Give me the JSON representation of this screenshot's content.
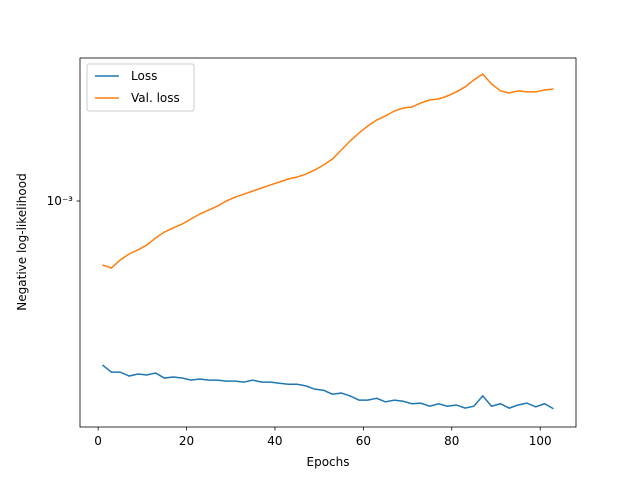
{
  "chart_data": {
    "type": "line",
    "xlabel": "Epochs",
    "ylabel": "Negative log-likelihood",
    "x": [
      1,
      3,
      5,
      7,
      9,
      11,
      13,
      15,
      17,
      19,
      21,
      23,
      25,
      27,
      29,
      31,
      33,
      35,
      37,
      39,
      41,
      43,
      45,
      47,
      49,
      51,
      53,
      55,
      57,
      59,
      61,
      63,
      65,
      67,
      69,
      71,
      73,
      75,
      77,
      79,
      81,
      83,
      85,
      87,
      89,
      91,
      93,
      95,
      97,
      99,
      101,
      103
    ],
    "series": [
      {
        "name": "Loss",
        "color": "#1f77b4",
        "values": [
          0.000284,
          0.000269,
          0.000269,
          0.000261,
          0.000265,
          0.000263,
          0.000267,
          0.000257,
          0.000259,
          0.000257,
          0.000253,
          0.000255,
          0.000253,
          0.000253,
          0.000251,
          0.000251,
          0.000249,
          0.000253,
          0.000249,
          0.000249,
          0.000247,
          0.000245,
          0.000245,
          0.000242,
          0.000236,
          0.000234,
          0.000227,
          0.000229,
          0.000224,
          0.000217,
          0.000217,
          0.00022,
          0.000214,
          0.000217,
          0.000215,
          0.000211,
          0.000212,
          0.000207,
          0.000211,
          0.000207,
          0.000209,
          0.000204,
          0.000207,
          0.000224,
          0.000207,
          0.000211,
          0.000204,
          0.000209,
          0.000212,
          0.000206,
          0.000211,
          0.000203
        ]
      },
      {
        "name": "Val. loss",
        "color": "#ff7f0e",
        "values": [
          0.000612,
          0.000598,
          0.000636,
          0.000666,
          0.000687,
          0.000713,
          0.000753,
          0.000788,
          0.000813,
          0.000838,
          0.000871,
          0.000905,
          0.000933,
          0.000962,
          0.001,
          0.001031,
          0.001055,
          0.00108,
          0.001105,
          0.001131,
          0.001157,
          0.001184,
          0.001202,
          0.00123,
          0.001268,
          0.001318,
          0.00138,
          0.001479,
          0.001585,
          0.001685,
          0.001778,
          0.001862,
          0.001921,
          0.001995,
          0.002042,
          0.002058,
          0.002122,
          0.002173,
          0.002188,
          0.002239,
          0.00231,
          0.0024,
          0.002531,
          0.00265,
          0.002455,
          0.002329,
          0.002291,
          0.002329,
          0.00231,
          0.00231,
          0.002345,
          0.002363
        ]
      }
    ],
    "xlim": [
      -4.1,
      108.1
    ],
    "xticks": [
      0,
      20,
      40,
      60,
      80,
      100
    ],
    "ylim": [
      0.0001765,
      0.002997
    ],
    "yticks": [
      {
        "value": 0.001,
        "label": "10⁻³"
      }
    ],
    "yscale": "log",
    "grid": false,
    "legend": "upper left"
  }
}
